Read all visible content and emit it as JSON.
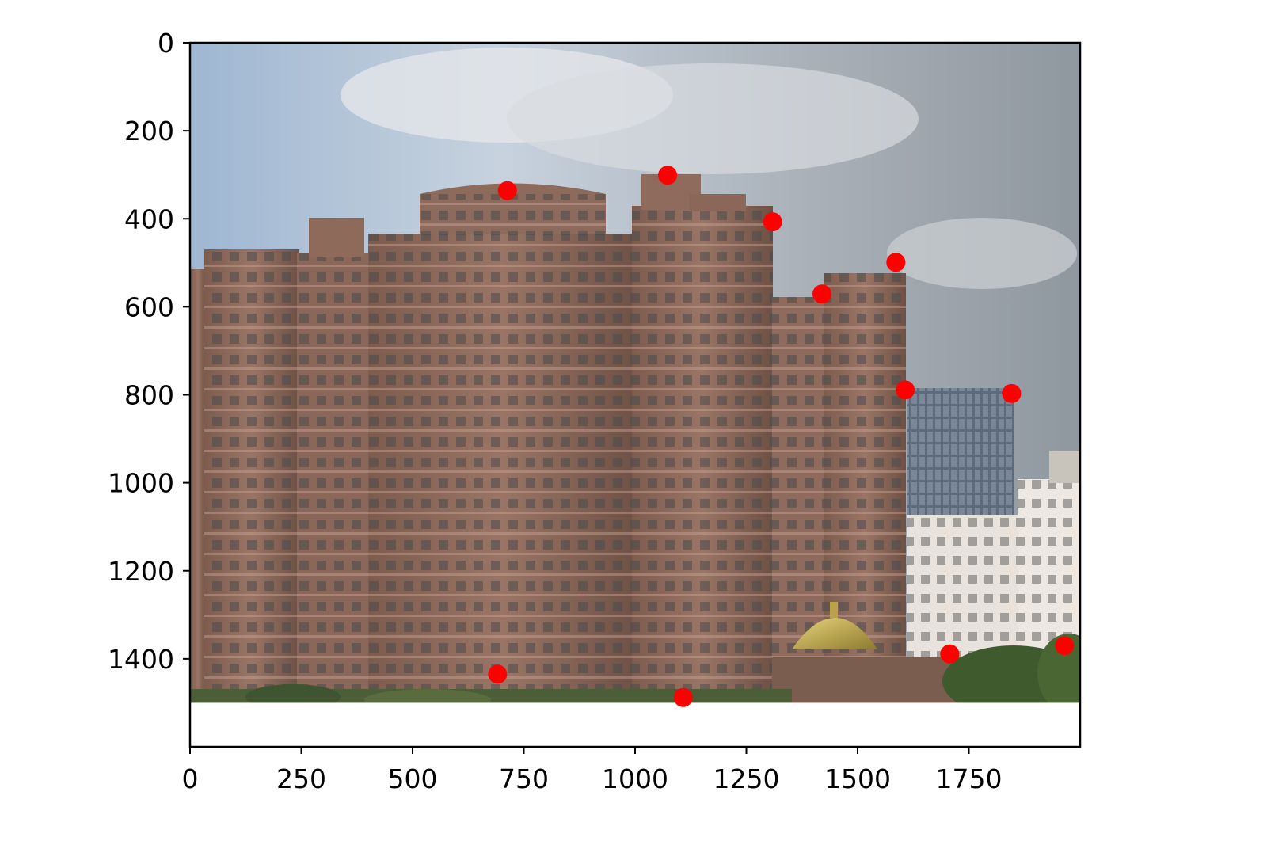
{
  "chart_data": {
    "type": "scatter",
    "title": "",
    "xlabel": "",
    "ylabel": "",
    "background": "photograph of high-rise residential buildings",
    "xlim": [
      0,
      2000
    ],
    "ylim": [
      1600,
      0
    ],
    "image_extent": {
      "x": [
        0,
        2000
      ],
      "y": [
        1500,
        0
      ]
    },
    "x_ticks": [
      0,
      250,
      500,
      750,
      1000,
      1250,
      1500,
      1750
    ],
    "x_tick_labels": [
      "0",
      "250",
      "500",
      "750",
      "1000",
      "1250",
      "1500",
      "1750"
    ],
    "y_ticks": [
      0,
      200,
      400,
      600,
      800,
      1000,
      1200,
      1400
    ],
    "y_tick_labels": [
      "0",
      "200",
      "400",
      "600",
      "800",
      "1000",
      "1200",
      "1400"
    ],
    "grid": false,
    "point_color": "#ff0000",
    "points": [
      {
        "x": 713,
        "y": 336
      },
      {
        "x": 1073,
        "y": 301
      },
      {
        "x": 1309,
        "y": 407
      },
      {
        "x": 1586,
        "y": 499
      },
      {
        "x": 1420,
        "y": 571
      },
      {
        "x": 1607,
        "y": 789
      },
      {
        "x": 1846,
        "y": 797
      },
      {
        "x": 691,
        "y": 1435
      },
      {
        "x": 1108,
        "y": 1488
      },
      {
        "x": 1707,
        "y": 1389
      },
      {
        "x": 1965,
        "y": 1370
      }
    ]
  }
}
